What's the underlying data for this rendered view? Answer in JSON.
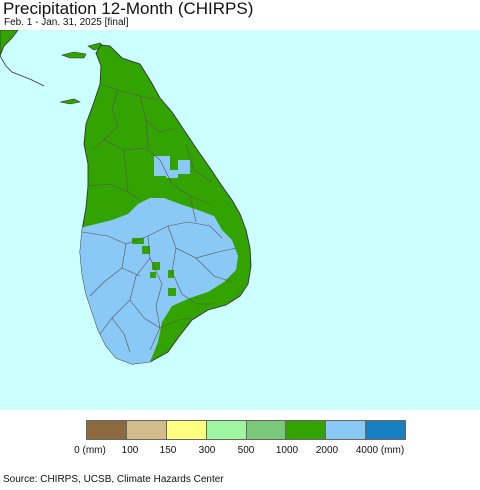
{
  "header": {
    "title": "Precipitation 12-Month (CHIRPS)",
    "subtitle": "Feb. 1 - Jan. 31, 2025 [final]"
  },
  "colors": {
    "ocean": "#ccffff",
    "land_base": "#33a302",
    "high_precip": "#8ac8f5",
    "border": "#555555",
    "legend_colors": [
      "#8b6a40",
      "#d2bc8c",
      "#ffff80",
      "#a0f5a0",
      "#7ac87a",
      "#33a302",
      "#8ac8f5",
      "#1a7fc0"
    ]
  },
  "legend": {
    "labels": [
      "0 (mm)",
      "100",
      "150",
      "300",
      "500",
      "1000",
      "2000",
      "4000 (mm)"
    ]
  },
  "footer": {
    "source": "Source: CHIRPS, UCSB, Climate Hazards Center"
  }
}
